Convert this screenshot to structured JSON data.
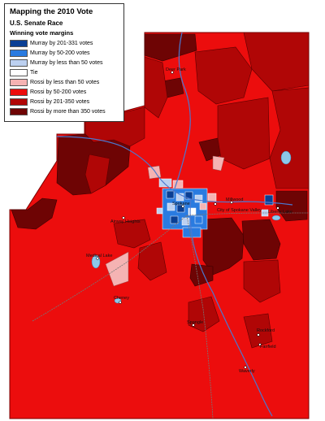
{
  "legend": {
    "title": "Mapping the 2010 Vote",
    "subtitle": "U.S. Senate Race",
    "heading": "Winning vote margins",
    "items": [
      {
        "label": "Murray by 201-331 votes",
        "color": "#0a3f94"
      },
      {
        "label": "Murray by 50-200 votes",
        "color": "#2a7be0"
      },
      {
        "label": "Murray by less than 50 votes",
        "color": "#bcd0f0"
      },
      {
        "label": "Tie",
        "color": "#ffffff"
      },
      {
        "label": "Rossi by less than 50 votes",
        "color": "#f5b3b3"
      },
      {
        "label": "Rossi by 50-200 votes",
        "color": "#ec0d0d"
      },
      {
        "label": "Rossi by 201-350 votes",
        "color": "#b00606"
      },
      {
        "label": "Rossi by more than 350 votes",
        "color": "#6e0404"
      }
    ]
  },
  "map": {
    "place_labels": [
      {
        "text": "Deer Park"
      },
      {
        "text": "Spokane"
      },
      {
        "text": "City of Spokane Valley"
      },
      {
        "text": "Millwood"
      },
      {
        "text": "Liberty Lake"
      },
      {
        "text": "Airway Heights"
      },
      {
        "text": "Medical Lake"
      },
      {
        "text": "Cheney"
      },
      {
        "text": "Spangle"
      },
      {
        "text": "Rockford"
      },
      {
        "text": "Fairfield"
      },
      {
        "text": "Waverly"
      }
    ]
  }
}
